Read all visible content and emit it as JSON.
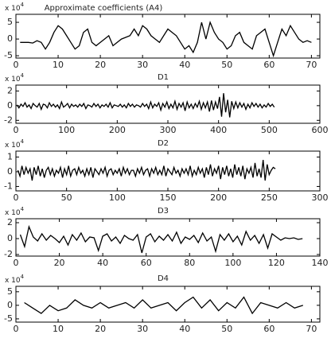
{
  "chart_data": [
    {
      "type": "line",
      "title": "Approximate coefficients (A4)",
      "y_scale": "x 10",
      "y_scale_exponent": "4",
      "color": "#000000",
      "x": [
        1,
        2,
        3,
        4,
        5,
        6,
        7,
        8,
        9,
        10,
        11,
        12,
        13,
        14,
        15,
        16,
        17,
        18,
        19,
        20,
        21,
        22,
        23,
        24,
        25,
        26,
        27,
        28,
        29,
        30,
        31,
        32,
        33,
        34,
        35,
        36,
        37,
        38,
        39,
        40,
        41,
        42,
        43,
        44,
        45,
        46,
        47,
        48,
        49,
        50,
        51,
        52,
        53,
        54,
        55,
        56,
        57,
        58,
        59,
        60,
        61,
        62,
        63,
        64,
        65,
        66,
        67,
        68,
        69,
        70
      ],
      "values": [
        -1,
        -1,
        -1,
        -1.2,
        -0.5,
        -1,
        -3,
        -1,
        2,
        4,
        3,
        1,
        -1,
        -3,
        -2,
        2,
        3,
        -1,
        -2,
        -1,
        0,
        1,
        -2,
        -1,
        0,
        0.5,
        1,
        3,
        1,
        4,
        3,
        1,
        0,
        -1,
        1,
        3,
        2,
        1,
        -1,
        -3,
        -2,
        -4,
        -1,
        5,
        0,
        5,
        2,
        0,
        -1,
        -3,
        -2,
        1,
        2,
        -1,
        -2,
        -3,
        1,
        2,
        3,
        -1,
        -5,
        -1,
        3,
        1,
        4,
        2,
        0,
        -1,
        -0.5,
        -1
      ],
      "xlim": [
        0,
        72
      ],
      "ylim": [
        -5.7,
        7.4
      ],
      "xticks": [
        0,
        10,
        20,
        30,
        40,
        50,
        60,
        70
      ],
      "yticks": [
        -5,
        0,
        5
      ]
    },
    {
      "type": "line",
      "title": "D1",
      "y_scale": "x 10",
      "y_scale_exponent": "4",
      "color": "#000000",
      "x": [
        2,
        6,
        10,
        14,
        18,
        22,
        26,
        30,
        34,
        38,
        42,
        46,
        50,
        54,
        58,
        62,
        66,
        70,
        74,
        78,
        82,
        86,
        90,
        94,
        98,
        102,
        106,
        110,
        114,
        118,
        122,
        126,
        130,
        134,
        138,
        142,
        146,
        150,
        154,
        158,
        162,
        166,
        170,
        174,
        178,
        182,
        186,
        190,
        194,
        198,
        202,
        206,
        210,
        214,
        218,
        222,
        226,
        230,
        234,
        238,
        242,
        246,
        250,
        254,
        258,
        262,
        266,
        270,
        274,
        278,
        282,
        286,
        290,
        294,
        298,
        302,
        306,
        310,
        314,
        318,
        322,
        326,
        330,
        334,
        338,
        342,
        346,
        350,
        354,
        358,
        362,
        366,
        370,
        374,
        378,
        382,
        386,
        390,
        394,
        398,
        402,
        406,
        410,
        414,
        418,
        422,
        426,
        430,
        434,
        438,
        442,
        446,
        450,
        454,
        458,
        462,
        466,
        470,
        474,
        478,
        482,
        486,
        490,
        494,
        498,
        502,
        506,
        510
      ],
      "values": [
        0.1,
        -0.3,
        0.2,
        -0.1,
        0.4,
        -0.2,
        0.1,
        -0.4,
        0.3,
        0,
        -0.2,
        0.3,
        -0.5,
        0.2,
        0.1,
        -0.3,
        0.4,
        -0.1,
        0.2,
        -0.2,
        0.1,
        -0.4,
        0.5,
        -0.2,
        0,
        0.3,
        -0.3,
        0.2,
        -0.1,
        0.1,
        -0.2,
        0.2,
        -0.1,
        0.3,
        -0.4,
        0.1,
        0,
        -0.2,
        0.3,
        -0.1,
        0.2,
        -0.3,
        0.1,
        -0.1,
        0.2,
        -0.2,
        0.4,
        -0.3,
        0.1,
        0,
        -0.1,
        0.2,
        -0.2,
        0.1,
        -0.3,
        0.3,
        -0.1,
        0.2,
        -0.2,
        0.1,
        0,
        -0.2,
        0.3,
        -0.1,
        0.2,
        -0.4,
        0.5,
        -0.3,
        0.2,
        -0.1,
        0.4,
        -0.6,
        0.3,
        -0.2,
        0.5,
        -0.4,
        0.2,
        -0.3,
        0.6,
        -0.5,
        0.3,
        -0.2,
        0.4,
        -0.7,
        0.5,
        -0.3,
        0.2,
        -0.4,
        0.3,
        -0.2,
        0.6,
        -0.5,
        0.4,
        -0.3,
        0.5,
        -0.8,
        0.7,
        -0.6,
        0.5,
        -0.4,
        1.2,
        -1.5,
        1.7,
        -0.9,
        0.8,
        -1.6,
        0.6,
        -0.4,
        0.5,
        -0.3,
        0.4,
        -0.2,
        0.3,
        -0.5,
        0.2,
        -0.3,
        0.4,
        -0.1,
        0.3,
        -0.2,
        0.2,
        -0.3,
        0.1,
        -0.2,
        0.3,
        -0.1,
        0.2,
        -0.2
      ],
      "xlim": [
        0,
        600
      ],
      "ylim": [
        -2.4,
        2.8
      ],
      "xticks": [
        0,
        100,
        200,
        300,
        400,
        500,
        600
      ],
      "yticks": [
        -2,
        0,
        2
      ]
    },
    {
      "type": "line",
      "title": "D2",
      "y_scale": "x 10",
      "y_scale_exponent": "4",
      "color": "#000000",
      "x": [
        2,
        4,
        6,
        8,
        10,
        12,
        14,
        16,
        18,
        20,
        22,
        24,
        26,
        28,
        30,
        32,
        34,
        36,
        38,
        40,
        42,
        44,
        46,
        48,
        50,
        52,
        54,
        56,
        58,
        60,
        62,
        64,
        66,
        68,
        70,
        72,
        74,
        76,
        78,
        80,
        82,
        84,
        86,
        88,
        90,
        92,
        94,
        96,
        98,
        100,
        102,
        104,
        106,
        108,
        110,
        112,
        114,
        116,
        118,
        120,
        122,
        124,
        126,
        128,
        130,
        132,
        134,
        136,
        138,
        140,
        142,
        144,
        146,
        148,
        150,
        152,
        154,
        156,
        158,
        160,
        162,
        164,
        166,
        168,
        170,
        172,
        174,
        176,
        178,
        180,
        182,
        184,
        186,
        188,
        190,
        192,
        194,
        196,
        198,
        200,
        202,
        204,
        206,
        208,
        210,
        212,
        214,
        216,
        218,
        220,
        222,
        224,
        226,
        228,
        230,
        232,
        234,
        236,
        238,
        240,
        242,
        244,
        246,
        248,
        250,
        252,
        254,
        256
      ],
      "values": [
        0.1,
        -0.3,
        0.4,
        -0.2,
        0.3,
        -0.1,
        0.2,
        -0.6,
        0.3,
        -0.2,
        0.4,
        -0.3,
        0.2,
        -0.4,
        0.1,
        0.3,
        -0.2,
        0.2,
        -0.3,
        0.1,
        -0.1,
        0.3,
        -0.4,
        0.2,
        -0.2,
        0.4,
        -0.3,
        0.1,
        0.2,
        -0.2,
        0.3,
        -0.1,
        0.1,
        -0.3,
        0.2,
        -0.2,
        0.3,
        -0.4,
        0.2,
        0,
        -0.2,
        0.2,
        -0.1,
        0.3,
        -0.3,
        0.1,
        0.2,
        -0.2,
        0.1,
        -0.1,
        0.2,
        -0.3,
        0.3,
        -0.1,
        0.2,
        -0.2,
        0.1,
        0.1,
        -0.3,
        0.2,
        -0.1,
        0.3,
        -0.2,
        0.1,
        0.2,
        -0.3,
        0.2,
        -0.1,
        0.3,
        -0.2,
        0.1,
        -0.2,
        0.4,
        -0.3,
        0.2,
        0,
        -0.2,
        0.3,
        -0.1,
        0.1,
        -0.3,
        0.2,
        -0.1,
        0.2,
        -0.2,
        0.4,
        -0.3,
        0.1,
        -0.2,
        0.3,
        -0.1,
        0.2,
        -0.4,
        0.3,
        -0.2,
        0.5,
        -0.3,
        0.2,
        -0.1,
        0.4,
        -0.5,
        0.3,
        -0.2,
        0.4,
        -0.3,
        0.2,
        -0.4,
        0.5,
        -0.2,
        0.3,
        -0.3,
        0.4,
        -0.5,
        0.2,
        -0.1,
        0.3,
        -0.4,
        0.6,
        -0.3,
        0.2,
        -0.4,
        0.8,
        -0.6,
        0.5,
        -0.2,
        0.1,
        0.3,
        0.2
      ],
      "xlim": [
        0,
        300
      ],
      "ylim": [
        -1.3,
        1.4
      ],
      "xticks": [
        0,
        50,
        100,
        150,
        200,
        250,
        300
      ],
      "yticks": [
        -1,
        0,
        1
      ]
    },
    {
      "type": "line",
      "title": "D3",
      "y_scale": "x 10",
      "y_scale_exponent": "4",
      "color": "#000000",
      "x": [
        2,
        4,
        6,
        8,
        10,
        12,
        14,
        16,
        18,
        20,
        22,
        24,
        26,
        28,
        30,
        32,
        34,
        36,
        38,
        40,
        42,
        44,
        46,
        48,
        50,
        52,
        54,
        56,
        58,
        60,
        62,
        64,
        66,
        68,
        70,
        72,
        74,
        76,
        78,
        80,
        82,
        84,
        86,
        88,
        90,
        92,
        94,
        96,
        98,
        100,
        102,
        104,
        106,
        108,
        110,
        112,
        114,
        116,
        118,
        120,
        122,
        124,
        126,
        128,
        130,
        132
      ],
      "values": [
        0.5,
        -1,
        1.5,
        0.2,
        -0.3,
        0.6,
        -0.2,
        0.4,
        0,
        -0.5,
        0.3,
        -0.8,
        0.5,
        -0.2,
        0.7,
        -0.4,
        0.2,
        0.1,
        -1.5,
        0.3,
        0.6,
        -0.3,
        0.2,
        -0.6,
        0.4,
        0,
        -0.2,
        0.5,
        -1.8,
        0.2,
        0.6,
        -0.4,
        0.3,
        -0.2,
        0.5,
        -0.3,
        0.8,
        -0.6,
        0.2,
        -0.1,
        0.4,
        -0.5,
        0.7,
        -0.3,
        0.2,
        -1.6,
        0.5,
        -0.2,
        0.6,
        -0.4,
        0.3,
        -0.8,
        0.9,
        -0.2,
        0.4,
        -0.6,
        0.5,
        -1.2,
        0.6,
        0.2,
        -0.2,
        0.1,
        0,
        0.1,
        -0.1,
        0
      ],
      "xlim": [
        0,
        140
      ],
      "ylim": [
        -2.2,
        2.5
      ],
      "xticks": [
        0,
        20,
        40,
        60,
        80,
        100,
        120,
        140
      ],
      "yticks": [
        -2,
        0,
        2
      ]
    },
    {
      "type": "line",
      "title": "D4",
      "y_scale": "x 10",
      "y_scale_exponent": "4",
      "color": "#000000",
      "x": [
        2,
        4,
        6,
        8,
        10,
        12,
        14,
        16,
        18,
        20,
        22,
        24,
        26,
        28,
        30,
        32,
        34,
        36,
        38,
        40,
        42,
        44,
        46,
        48,
        50,
        52,
        54,
        56,
        58,
        60,
        62,
        64,
        66,
        68
      ],
      "values": [
        1,
        -1,
        -3,
        0,
        -2,
        -1,
        2,
        0,
        -1,
        1,
        -1,
        0,
        1,
        -1,
        2,
        -1,
        0,
        1,
        -2,
        1,
        3,
        -1,
        2,
        -2,
        1,
        -1,
        3,
        -3,
        1,
        0,
        -1,
        1,
        -1,
        0
      ],
      "xlim": [
        0,
        72
      ],
      "ylim": [
        -6.2,
        7
      ],
      "xticks": [
        0,
        10,
        20,
        30,
        40,
        50,
        60,
        70
      ],
      "yticks": [
        -5,
        0,
        5
      ]
    }
  ]
}
